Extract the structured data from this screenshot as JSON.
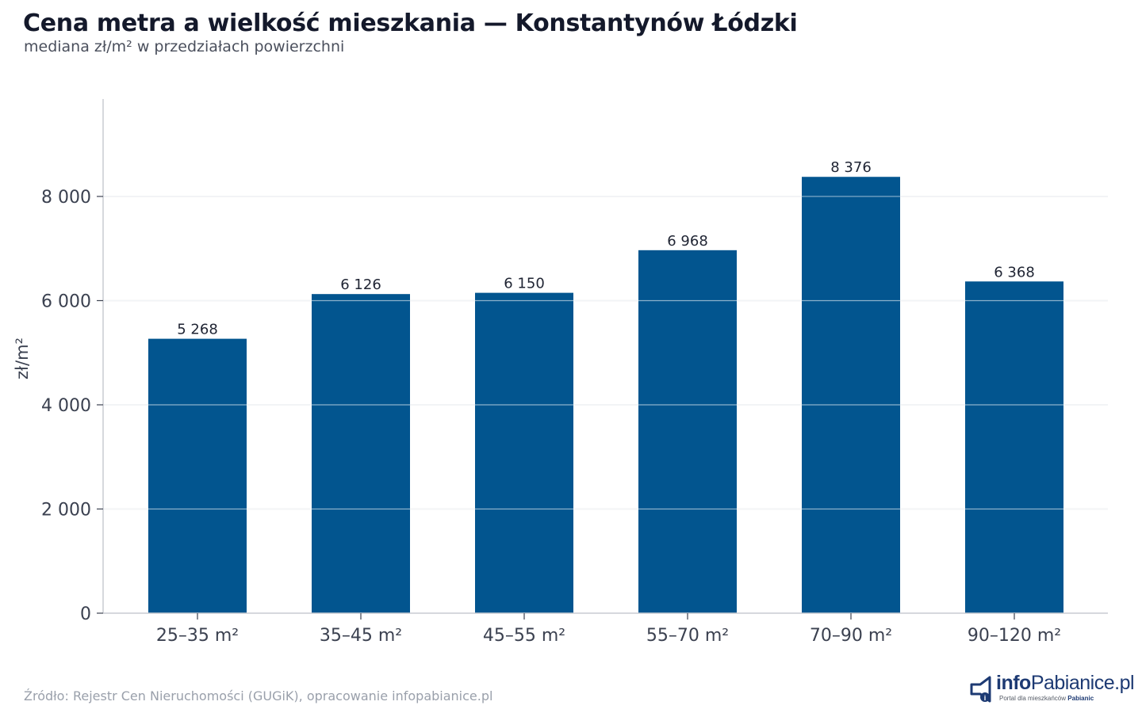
{
  "header": {
    "title": "Cena metra a wielkość mieszkania — Konstantynów Łódzki",
    "subtitle": "mediana zł/m² w przedziałach powierzchni"
  },
  "footer": {
    "source": "Źródło: Rejestr Cen Nieruchomości (GUGiK), opracowanie infopabianice.pl"
  },
  "logo": {
    "brand_bold": "info",
    "brand_light": "Pabianice.pl",
    "tagline": "Portal dla mieszkańców",
    "tagline_bold": "Pabianic"
  },
  "colors": {
    "bar": "#02558f",
    "grid": "#e3e6ea",
    "axis": "#c9ccd2",
    "text": "#1f2433"
  },
  "chart_data": {
    "type": "bar",
    "title": "Cena metra a wielkość mieszkania — Konstantynów Łódzki",
    "subtitle": "mediana zł/m² w przedziałach powierzchni",
    "xlabel": "",
    "ylabel": "zł/m²",
    "categories": [
      "25–35 m²",
      "35–45 m²",
      "45–55 m²",
      "55–70 m²",
      "70–90 m²",
      "90–120 m²"
    ],
    "values": [
      5268,
      6126,
      6150,
      6968,
      8376,
      6368
    ],
    "value_labels": [
      "5 268",
      "6 126",
      "6 150",
      "6 968",
      "8 376",
      "6 368"
    ],
    "yticks": [
      0,
      2000,
      4000,
      6000,
      8000
    ],
    "ytick_labels": [
      "0",
      "2 000",
      "4 000",
      "6 000",
      "8 000"
    ],
    "ylim": [
      0,
      9870
    ],
    "grid": true,
    "legend": "none"
  }
}
